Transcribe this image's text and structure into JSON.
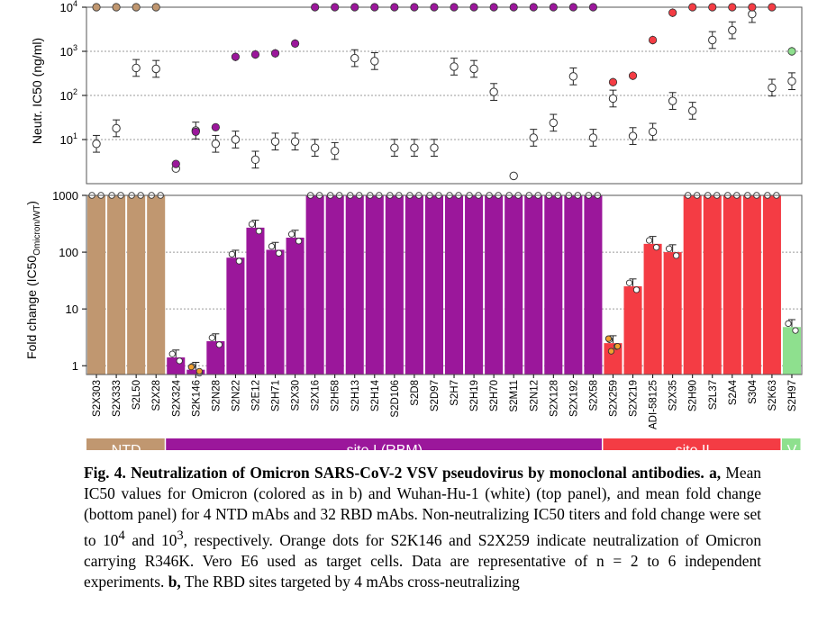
{
  "figure": {
    "top_ylabel": "Neutr. IC50 (ng/ml)",
    "bottom_ylabel_main": "Fold change (IC50",
    "bottom_ylabel_sub": "Omicron/WT",
    "bottom_ylabel_end": ")",
    "top_ticks": [
      {
        "value": 10,
        "b": "10",
        "e": "1"
      },
      {
        "value": 100,
        "b": "10",
        "e": "2"
      },
      {
        "value": 1000,
        "b": "10",
        "e": "3"
      },
      {
        "value": 10000,
        "b": "10",
        "e": "4"
      }
    ],
    "bottom_ticks": [
      {
        "value": 1,
        "label": "1"
      },
      {
        "value": 10,
        "label": "10"
      },
      {
        "value": 100,
        "label": "100"
      },
      {
        "value": 1000,
        "label": "1000"
      }
    ],
    "colors": {
      "NTD": "#c09770",
      "site I (RBM)": "#9b179b",
      "site II": "#f43c44",
      "V": "#8ee08e",
      "wt": "#ffffff",
      "r346k": "#f0a030"
    },
    "groups": [
      {
        "label": "NTD",
        "key": "NTD",
        "from": 0,
        "to": 3
      },
      {
        "label": "site I (RBM)",
        "key": "site I (RBM)",
        "from": 4,
        "to": 25
      },
      {
        "label": "site II",
        "key": "site II",
        "from": 26,
        "to": 34
      },
      {
        "label": "V",
        "key": "V",
        "from": 35,
        "to": 35
      }
    ]
  },
  "chart_data": [
    {
      "type": "scatter",
      "panel": "top",
      "ylabel": "Neutr. IC50 (ng/ml)",
      "yscale": "log",
      "ylim": [
        1,
        10000
      ],
      "grid": true,
      "categories": [
        "S2X303",
        "S2X333",
        "S2L50",
        "S2X28",
        "S2X324",
        "S2K146",
        "S2N28",
        "S2N22",
        "S2E12",
        "S2H71",
        "S2X30",
        "S2X16",
        "S2H58",
        "S2H13",
        "S2H14",
        "S2D106",
        "S2D8",
        "S2D97",
        "S2H7",
        "S2H19",
        "S2H70",
        "S2M11",
        "S2N12",
        "S2X128",
        "S2X192",
        "S2X58",
        "S2X259",
        "S2X219",
        "ADI-58125",
        "S2X35",
        "S2H90",
        "S2L37",
        "S2A4",
        "S304",
        "S2K63",
        "S2H97"
      ],
      "series": [
        {
          "values": [
            10000,
            10000,
            10000,
            10000,
            2.8,
            15,
            19,
            750,
            850,
            900,
            1500,
            10000,
            10000,
            10000,
            10000,
            10000,
            10000,
            10000,
            10000,
            10000,
            10000,
            10000,
            10000,
            10000,
            10000,
            10000,
            200,
            280,
            1800,
            7500,
            10000,
            10000,
            10000,
            10000,
            10000,
            1000
          ]
        },
        {
          "values": [
            8,
            18,
            420,
            400,
            2.2,
            16,
            8,
            10,
            3.5,
            9,
            9,
            6.5,
            5.5,
            700,
            600,
            6.5,
            6.5,
            6.5,
            450,
            400,
            120,
            1.5,
            11,
            24,
            270,
            11,
            85,
            12,
            15,
            75,
            45,
            1800,
            3000,
            7000,
            150,
            210
          ]
        }
      ]
    },
    {
      "type": "bar",
      "panel": "bottom",
      "ylabel": "Fold change (IC50Omicron/WT)",
      "yscale": "log",
      "ylim": [
        0.7,
        1000
      ],
      "grid": true,
      "categories": [
        "S2X303",
        "S2X333",
        "S2L50",
        "S2X28",
        "S2X324",
        "S2K146",
        "S2N28",
        "S2N22",
        "S2E12",
        "S2H71",
        "S2X30",
        "S2X16",
        "S2H58",
        "S2H13",
        "S2H14",
        "S2D106",
        "S2D8",
        "S2D97",
        "S2H7",
        "S2H19",
        "S2H70",
        "S2M11",
        "S2N12",
        "S2X128",
        "S2X192",
        "S2X58",
        "S2X259",
        "S2X219",
        "ADI-58125",
        "S2X35",
        "S2H90",
        "S2L37",
        "S2A4",
        "S304",
        "S2K63",
        "S2H97"
      ],
      "values": [
        1000,
        1000,
        1000,
        1000,
        1.4,
        0.85,
        2.7,
        80,
        270,
        110,
        180,
        1000,
        1000,
        1000,
        1000,
        1000,
        1000,
        1000,
        1000,
        1000,
        1000,
        1000,
        1000,
        1000,
        1000,
        1000,
        2.5,
        25,
        140,
        100,
        1000,
        1000,
        1000,
        1000,
        1000,
        4.8
      ]
    }
  ],
  "caption": {
    "fig_label": "Fig. 4.",
    "title": " Neutralization of Omicron SARS-CoV-2 VSV pseudovirus by monoclonal antibodies.",
    "part_a": " a,",
    "text_a": " Mean IC50 values for Omicron (colored as in b) and Wuhan-Hu-1 (white) (top panel), and mean fold change (bottom panel) for 4 NTD mAbs and 32 RBD mAbs. Non-neutralizing IC50 titers and fold change were set to 10",
    "sup1": "4",
    "and": " and 10",
    "sup2": "3",
    "text_rest": ", respectively. Orange dots for S2K146 and S2X259 indicate neutralization of Omicron carrying R346K. Vero E6 used as target cells. Data are representative of n = 2 to 6 independent experiments.",
    "part_b": " b,",
    "text_b": " The RBD sites targeted by 4 mAbs cross-neutralizing"
  }
}
